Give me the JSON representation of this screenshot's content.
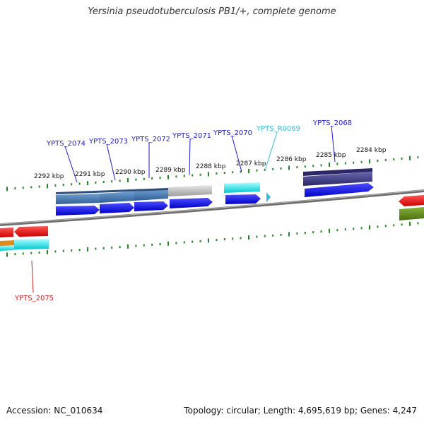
{
  "title": "Yersinia pseudotuberculosis PB1/+, complete genome",
  "scale_labels": [
    "2292 kbp",
    "2291 kbp",
    "2290 kbp",
    "2289 kbp",
    "2288 kbp",
    "2287 kbp",
    "2286 kbp",
    "2285 kbp",
    "2284 kbp"
  ],
  "gene_labels": [
    {
      "text": "YPTS_2074",
      "color": "#1a1acc"
    },
    {
      "text": "YPTS_2073",
      "color": "#1a1acc"
    },
    {
      "text": "YPTS_2072",
      "color": "#1a1acc"
    },
    {
      "text": "YPTS_2071",
      "color": "#1a1acc"
    },
    {
      "text": "YPTS_2070",
      "color": "#1a1acc"
    },
    {
      "text": "YPTS_R0069",
      "color": "#33bbdd"
    },
    {
      "text": "YPTS_2068",
      "color": "#1a1acc"
    },
    {
      "text": "YPTS_2075",
      "color": "#cc2222"
    }
  ],
  "colors": {
    "backbone": "#808080",
    "tick": "#1f8a1f",
    "cds": "#0000ee",
    "rna": "#00e5e5",
    "gene_blue": "#4c7fb5",
    "gene_grey": "#bcbcbc",
    "gene_purple": "#3e3a8a",
    "gene_red": "#ee0000",
    "gene_orange": "#e08a1e",
    "gene_olive": "#5f8a1a"
  },
  "footer": {
    "accession": "Accession: NC_010634",
    "summary": "Topology: circular; Length: 4,695,619 bp; Genes: 4,247"
  }
}
